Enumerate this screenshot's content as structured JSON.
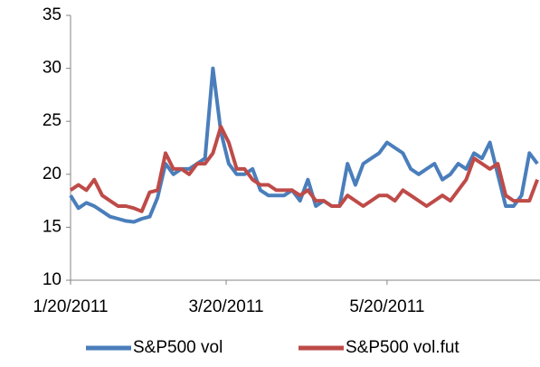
{
  "chart_data": {
    "type": "line",
    "x": [
      "1/20/2011",
      "1/23/2011",
      "1/26/2011",
      "1/29/2011",
      "2/1/2011",
      "2/4/2011",
      "2/7/2011",
      "2/10/2011",
      "2/13/2011",
      "2/16/2011",
      "2/19/2011",
      "2/22/2011",
      "2/25/2011",
      "2/28/2011",
      "3/3/2011",
      "3/6/2011",
      "3/9/2011",
      "3/12/2011",
      "3/15/2011",
      "3/18/2011",
      "3/21/2011",
      "3/24/2011",
      "3/27/2011",
      "3/30/2011",
      "4/2/2011",
      "4/5/2011",
      "4/8/2011",
      "4/11/2011",
      "4/14/2011",
      "4/17/2011",
      "4/20/2011",
      "4/23/2011",
      "4/26/2011",
      "4/29/2011",
      "5/2/2011",
      "5/5/2011",
      "5/8/2011",
      "5/11/2011",
      "5/14/2011",
      "5/17/2011",
      "5/20/2011",
      "5/23/2011",
      "5/26/2011",
      "5/29/2011",
      "6/1/2011",
      "6/4/2011",
      "6/7/2011",
      "6/10/2011",
      "6/13/2011",
      "6/16/2011",
      "6/19/2011",
      "6/22/2011",
      "6/25/2011",
      "6/28/2011",
      "7/1/2011",
      "7/4/2011",
      "7/7/2011",
      "7/10/2011",
      "7/13/2011",
      "7/16/2011"
    ],
    "series": [
      {
        "name": "S&P500 vol",
        "color": "#4a7ebb",
        "values": [
          18,
          16.8,
          17.3,
          17,
          16.5,
          16,
          15.8,
          15.6,
          15.5,
          15.8,
          16,
          17.8,
          21,
          20,
          20.5,
          20.5,
          21,
          21.5,
          30,
          24,
          21,
          20,
          20,
          20.5,
          18.5,
          18,
          18,
          18,
          18.5,
          17.5,
          19.5,
          17,
          17.5,
          17,
          17,
          21,
          19,
          21,
          21.5,
          22,
          23,
          22.5,
          22,
          20.5,
          20,
          20.5,
          21,
          19.5,
          20,
          21,
          20.5,
          22,
          21.5,
          23,
          20,
          17,
          17,
          18,
          22,
          21
        ]
      },
      {
        "name": "S&P500 vol.fut",
        "color": "#be4b48",
        "values": [
          18.5,
          19,
          18.5,
          19.5,
          18,
          17.5,
          17,
          17,
          16.8,
          16.5,
          18.3,
          18.5,
          22,
          20.5,
          20.5,
          20,
          21,
          21,
          22,
          24.5,
          23,
          20.5,
          20.5,
          19.5,
          19,
          19,
          18.5,
          18.5,
          18.5,
          18,
          18.5,
          17.5,
          17.5,
          17,
          17,
          18,
          17.5,
          17,
          17.5,
          18,
          18,
          17.5,
          18.5,
          18,
          17.5,
          17,
          17.5,
          18,
          17.5,
          18.5,
          19.5,
          21.5,
          21,
          20.5,
          21,
          18,
          17.5,
          17.5,
          17.5,
          19.5
        ]
      }
    ],
    "xlim": [
      "1/20/2011",
      "7/17/2011"
    ],
    "xticks": [
      "1/20/2011",
      "3/20/2011",
      "5/20/2011"
    ],
    "ylim": [
      10,
      35
    ],
    "yticks": [
      10,
      15,
      20,
      25,
      30,
      35
    ],
    "grid": false,
    "legend": "bottom"
  }
}
